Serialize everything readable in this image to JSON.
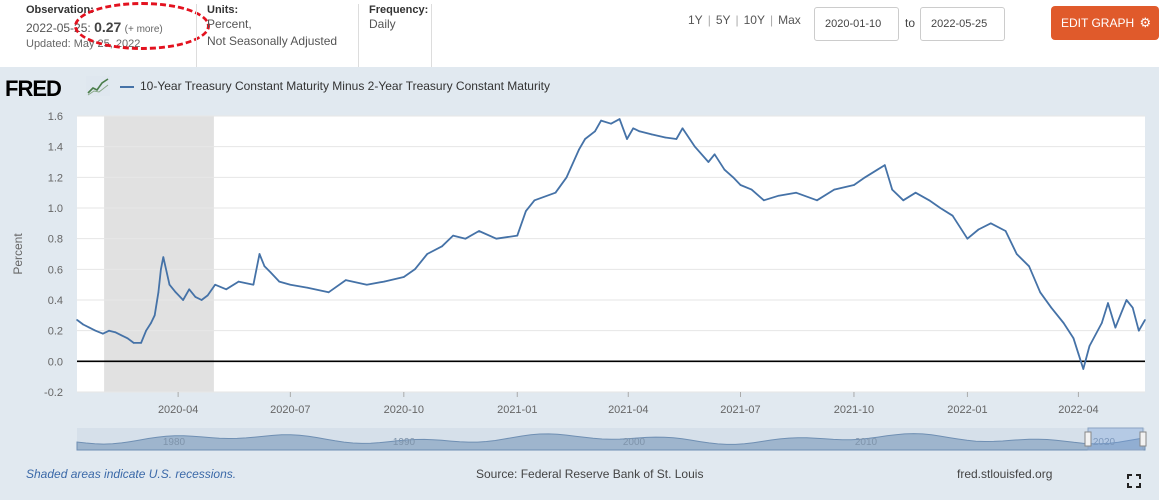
{
  "header": {
    "observation_label": "Observation:",
    "observation_date": "2022-05-25:",
    "observation_value": "0.27",
    "observation_more": "(+ more)",
    "updated": "Updated: May 25, 2022",
    "units_label": "Units:",
    "units_line1": "Percent,",
    "units_line2": "Not Seasonally Adjusted",
    "frequency_label": "Frequency:",
    "frequency_value": "Daily",
    "ranges": [
      "1Y",
      "5Y",
      "10Y",
      "Max"
    ],
    "date_start": "2020-01-10",
    "to_label": "to",
    "date_end": "2022-05-25",
    "edit_button": "EDIT GRAPH",
    "gear_icon": "gear-icon",
    "highlight_color": "#e3121f",
    "accent_color": "#e05a2b"
  },
  "logo": {
    "text": "FRED"
  },
  "footer": {
    "recession_note": "Shaded areas indicate U.S. recessions.",
    "source": "Source: Federal Reserve Bank of St. Louis",
    "site": "fred.stlouisfed.org",
    "fullscreen_icon": "fullscreen-icon"
  },
  "navigator": {
    "year_labels": [
      "1980",
      "1990",
      "2000",
      "2010",
      "2020"
    ]
  },
  "chart_data": {
    "type": "line",
    "title": "",
    "xlabel": "",
    "ylabel": "Percent",
    "ylim": [
      -0.2,
      1.6
    ],
    "yticks": [
      "1.6",
      "1.4",
      "1.2",
      "1.0",
      "0.8",
      "0.6",
      "0.4",
      "0.2",
      "0.0",
      "-0.2"
    ],
    "x_ticks": [
      {
        "label": "2020-04",
        "date": "2020-04-01"
      },
      {
        "label": "2020-07",
        "date": "2020-07-01"
      },
      {
        "label": "2020-10",
        "date": "2020-10-01"
      },
      {
        "label": "2021-01",
        "date": "2021-01-01"
      },
      {
        "label": "2021-04",
        "date": "2021-04-01"
      },
      {
        "label": "2021-07",
        "date": "2021-07-01"
      },
      {
        "label": "2021-10",
        "date": "2021-10-01"
      },
      {
        "label": "2022-01",
        "date": "2022-01-01"
      },
      {
        "label": "2022-04",
        "date": "2022-04-01"
      }
    ],
    "xlim": [
      "2020-01-10",
      "2022-05-25"
    ],
    "recession": {
      "start": "2020-02-01",
      "end": "2020-04-30"
    },
    "grid": true,
    "series": [
      {
        "name": "10-Year Treasury Constant Maturity Minus 2-Year Treasury Constant Maturity",
        "color": "#4572a7",
        "x": [
          "2020-01-10",
          "2020-01-15",
          "2020-01-20",
          "2020-01-25",
          "2020-01-31",
          "2020-02-05",
          "2020-02-10",
          "2020-02-15",
          "2020-02-20",
          "2020-02-25",
          "2020-03-02",
          "2020-03-06",
          "2020-03-10",
          "2020-03-13",
          "2020-03-16",
          "2020-03-18",
          "2020-03-20",
          "2020-03-25",
          "2020-03-30",
          "2020-04-05",
          "2020-04-10",
          "2020-04-15",
          "2020-04-20",
          "2020-04-25",
          "2020-05-01",
          "2020-05-10",
          "2020-05-20",
          "2020-06-01",
          "2020-06-06",
          "2020-06-10",
          "2020-06-15",
          "2020-06-22",
          "2020-07-01",
          "2020-07-15",
          "2020-08-01",
          "2020-08-15",
          "2020-09-01",
          "2020-09-15",
          "2020-10-01",
          "2020-10-10",
          "2020-10-20",
          "2020-11-01",
          "2020-11-10",
          "2020-11-20",
          "2020-12-01",
          "2020-12-15",
          "2021-01-01",
          "2021-01-08",
          "2021-01-15",
          "2021-02-01",
          "2021-02-10",
          "2021-02-20",
          "2021-02-25",
          "2021-03-05",
          "2021-03-10",
          "2021-03-18",
          "2021-03-25",
          "2021-03-31",
          "2021-04-05",
          "2021-04-10",
          "2021-04-20",
          "2021-05-01",
          "2021-05-10",
          "2021-05-15",
          "2021-05-25",
          "2021-06-05",
          "2021-06-10",
          "2021-06-18",
          "2021-06-25",
          "2021-07-01",
          "2021-07-10",
          "2021-07-20",
          "2021-08-01",
          "2021-08-15",
          "2021-09-01",
          "2021-09-15",
          "2021-10-01",
          "2021-10-10",
          "2021-10-20",
          "2021-10-26",
          "2021-11-01",
          "2021-11-10",
          "2021-11-20",
          "2021-12-01",
          "2021-12-10",
          "2021-12-20",
          "2022-01-01",
          "2022-01-10",
          "2022-01-20",
          "2022-02-01",
          "2022-02-10",
          "2022-02-20",
          "2022-03-01",
          "2022-03-10",
          "2022-03-20",
          "2022-03-28",
          "2022-04-01",
          "2022-04-05",
          "2022-04-10",
          "2022-04-20",
          "2022-04-25",
          "2022-05-01",
          "2022-05-05",
          "2022-05-10",
          "2022-05-15",
          "2022-05-20",
          "2022-05-25"
        ],
        "y": [
          0.27,
          0.24,
          0.22,
          0.2,
          0.18,
          0.2,
          0.19,
          0.17,
          0.15,
          0.12,
          0.12,
          0.2,
          0.25,
          0.3,
          0.45,
          0.6,
          0.68,
          0.5,
          0.45,
          0.4,
          0.47,
          0.42,
          0.4,
          0.43,
          0.5,
          0.47,
          0.52,
          0.5,
          0.7,
          0.62,
          0.58,
          0.52,
          0.5,
          0.48,
          0.45,
          0.53,
          0.5,
          0.52,
          0.55,
          0.6,
          0.7,
          0.75,
          0.82,
          0.8,
          0.85,
          0.8,
          0.82,
          0.98,
          1.05,
          1.1,
          1.2,
          1.38,
          1.45,
          1.5,
          1.57,
          1.55,
          1.58,
          1.45,
          1.52,
          1.5,
          1.48,
          1.46,
          1.45,
          1.52,
          1.4,
          1.3,
          1.35,
          1.25,
          1.2,
          1.15,
          1.12,
          1.05,
          1.08,
          1.1,
          1.05,
          1.12,
          1.15,
          1.2,
          1.25,
          1.28,
          1.12,
          1.05,
          1.1,
          1.05,
          1.0,
          0.95,
          0.8,
          0.86,
          0.9,
          0.85,
          0.7,
          0.62,
          0.45,
          0.35,
          0.25,
          0.15,
          0.05,
          -0.05,
          0.1,
          0.25,
          0.38,
          0.22,
          0.3,
          0.4,
          0.35,
          0.2,
          0.27
        ]
      }
    ]
  }
}
